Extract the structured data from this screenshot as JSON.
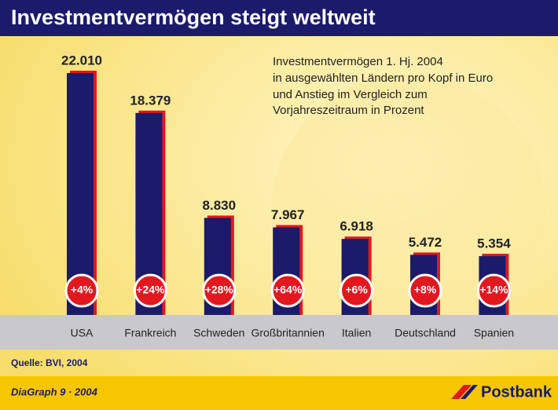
{
  "chart_data": {
    "type": "bar",
    "title": "Investmentvermögen steigt weltweit",
    "subtitle": [
      "Investmentvermögen 1. Hj. 2004",
      "in ausgewählten Ländern pro Kopf in Euro",
      "und Anstieg im Vergleich zum",
      "Vorjahreszeitraum in Prozent"
    ],
    "categories": [
      "USA",
      "Frankreich",
      "Schweden",
      "Großbritannien",
      "Italien",
      "Deutschland",
      "Spanien"
    ],
    "values": [
      22010,
      18379,
      8830,
      7967,
      6918,
      5472,
      5354
    ],
    "value_labels": [
      "22.010",
      "18.379",
      "8.830",
      "7.967",
      "6.918",
      "5.472",
      "5.354"
    ],
    "color": "#1b1a6b",
    "growth": {
      "values": [
        4,
        24,
        28,
        64,
        6,
        8,
        14
      ],
      "value_labels": [
        "+4%",
        "+24%",
        "+28%",
        "+64%",
        "+6%",
        "+8%",
        "+14%"
      ],
      "color": "#e3171e"
    }
  },
  "source": "Quelle: BVI, 2004",
  "footer": {
    "left": "DiaGraph 9 · 2004",
    "brand": "Postbank"
  }
}
